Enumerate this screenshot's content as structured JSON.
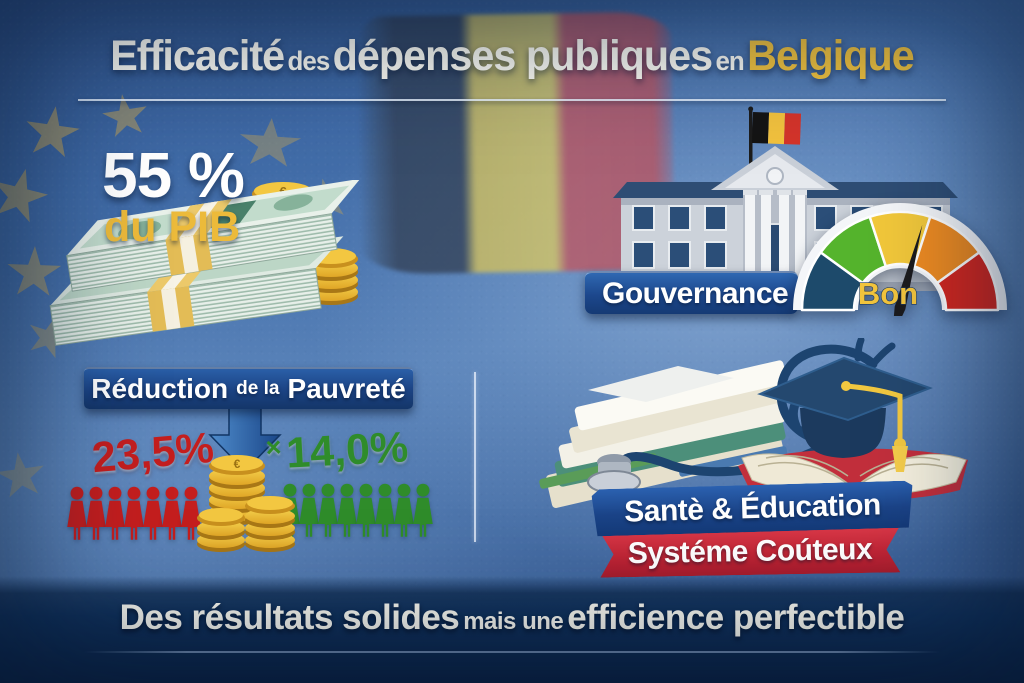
{
  "meta": {
    "type": "infographic",
    "language": "fr"
  },
  "title": {
    "word1": "Efficacité",
    "word2": "des",
    "word3": "dépenses publiques",
    "word4": "en",
    "word5": "Belgique"
  },
  "gdp": {
    "value": "55 %",
    "label": "du PIB",
    "icon": "banknote-bundles-and-coin-stacks"
  },
  "governance": {
    "label": "Gouvernance",
    "rating": "Bon",
    "icons": [
      "government-building",
      "belgian-flag",
      "performance-gauge"
    ],
    "gauge": {
      "segments": [
        "#1d4a6b",
        "#55b42d",
        "#f2c83a",
        "#ee8b21",
        "#d3271f"
      ],
      "needle_color": "#1b1b1d",
      "rating_color": "#f3c53d"
    }
  },
  "poverty": {
    "banner_word1": "Réduction",
    "banner_word2": "de la",
    "banner_word3": "Pauvreté",
    "before_value": "23,5%",
    "multiplier_sign": "×",
    "after_value": "14,0%",
    "before_color": "#c41e1e",
    "after_color": "#2f8c2a",
    "red_people_count": 7,
    "green_people_count": 8,
    "icons": [
      "down-arrow",
      "coin-stacks",
      "crowd-red",
      "crowd-green"
    ]
  },
  "health_education": {
    "banner_top": "Santè & Éducation",
    "banner_bottom": "Systéme Coúteux",
    "icons": [
      "stethoscope",
      "medical-documents",
      "graduation-cap",
      "open-book"
    ]
  },
  "footer": {
    "part1": "Des résultats solides",
    "part2": "mais une",
    "part3": "efficience perfectible"
  },
  "background": {
    "eu_stars_color": "#c9a552",
    "flag_band_colors": [
      "#32404f",
      "#d2c05c",
      "#ba5862"
    ],
    "base_blue": "#416da8",
    "footer_navy": "#0f2f58",
    "accent_yellow": "#f2c33e"
  }
}
